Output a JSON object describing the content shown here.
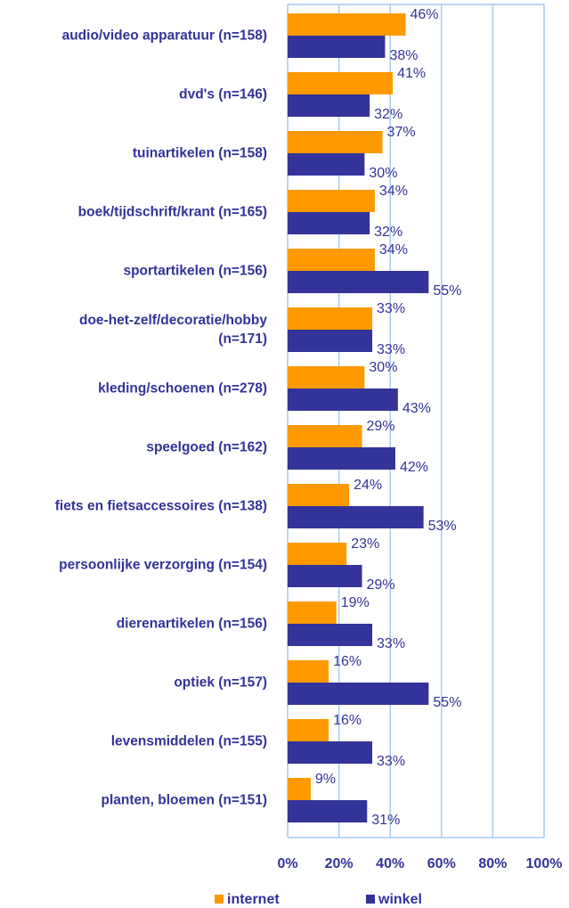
{
  "chart_data": {
    "type": "barh",
    "categories": [
      "audio/video apparatuur (n=158)",
      "dvd's (n=146)",
      "tuinartikelen (n=158)",
      "boek/tijdschrift/krant (n=165)",
      "sportartikelen (n=156)",
      "doe-het-zelf/decoratie/hobby (n=171)",
      "kleding/schoenen (n=278)",
      "speelgoed (n=162)",
      "fiets en fietsaccessoires (n=138)",
      "persoonlijke verzorging (n=154)",
      "dierenartikelen (n=156)",
      "optiek (n=157)",
      "levensmiddelen (n=155)",
      "planten, bloemen (n=151)"
    ],
    "series": [
      {
        "name": "internet",
        "color": "#ff9900",
        "values": [
          46,
          41,
          37,
          34,
          34,
          33,
          30,
          29,
          24,
          23,
          19,
          16,
          16,
          9
        ],
        "value_labels": [
          "46%",
          "41%",
          "37%",
          "34%",
          "34%",
          "33%",
          "30%",
          "29%",
          "24%",
          "23%",
          "19%",
          "16%",
          "16%",
          "9%"
        ]
      },
      {
        "name": "winkel",
        "color": "#333399",
        "values": [
          38,
          32,
          30,
          32,
          55,
          33,
          43,
          42,
          53,
          29,
          33,
          55,
          33,
          31
        ],
        "value_labels": [
          "38%",
          "32%",
          "30%",
          "32%",
          "55%",
          "33%",
          "43%",
          "42%",
          "53%",
          "29%",
          "33%",
          "55%",
          "33%",
          "31%"
        ]
      }
    ],
    "xlim": [
      0,
      100
    ],
    "xticks": [
      {
        "value": 0,
        "label": "0%"
      },
      {
        "value": 20,
        "label": "20%"
      },
      {
        "value": 40,
        "label": "40%"
      },
      {
        "value": 60,
        "label": "60%"
      },
      {
        "value": 80,
        "label": "80%"
      },
      {
        "value": 100,
        "label": "100%"
      }
    ],
    "grid": true,
    "legend": "bottom"
  }
}
